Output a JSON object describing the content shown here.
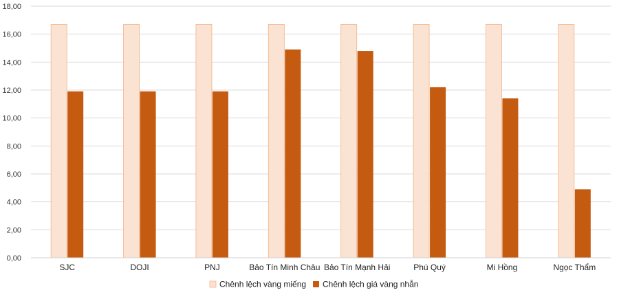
{
  "chart_data": {
    "type": "bar",
    "title": "",
    "xlabel": "",
    "ylabel": "",
    "categories": [
      "SJC",
      "DOJI",
      "PNJ",
      "Bảo Tín Minh Châu",
      "Bảo Tín Mạnh Hải",
      "Phú Quý",
      "Mi Hồng",
      "Ngọc Thẩm"
    ],
    "series": [
      {
        "name": "Chênh lệch vàng miếng",
        "color": "#fbe3d4",
        "stroke": "#f4b183",
        "values": [
          16.7,
          16.7,
          16.7,
          16.7,
          16.7,
          16.7,
          16.7,
          16.7
        ]
      },
      {
        "name": "Chênh lệch giá vàng nhẫn",
        "color": "#c55a11",
        "stroke": "#c55a11",
        "values": [
          11.9,
          11.9,
          11.9,
          14.9,
          14.8,
          12.2,
          11.4,
          4.9
        ]
      }
    ],
    "ylim": [
      0,
      18
    ],
    "yticks": [
      "0,00",
      "2,00",
      "4,00",
      "6,00",
      "8,00",
      "10,00",
      "12,00",
      "14,00",
      "16,00",
      "18,00"
    ],
    "ytick_values": [
      0,
      2,
      4,
      6,
      8,
      10,
      12,
      14,
      16,
      18
    ],
    "grid": true,
    "legend_position": "bottom-center"
  }
}
